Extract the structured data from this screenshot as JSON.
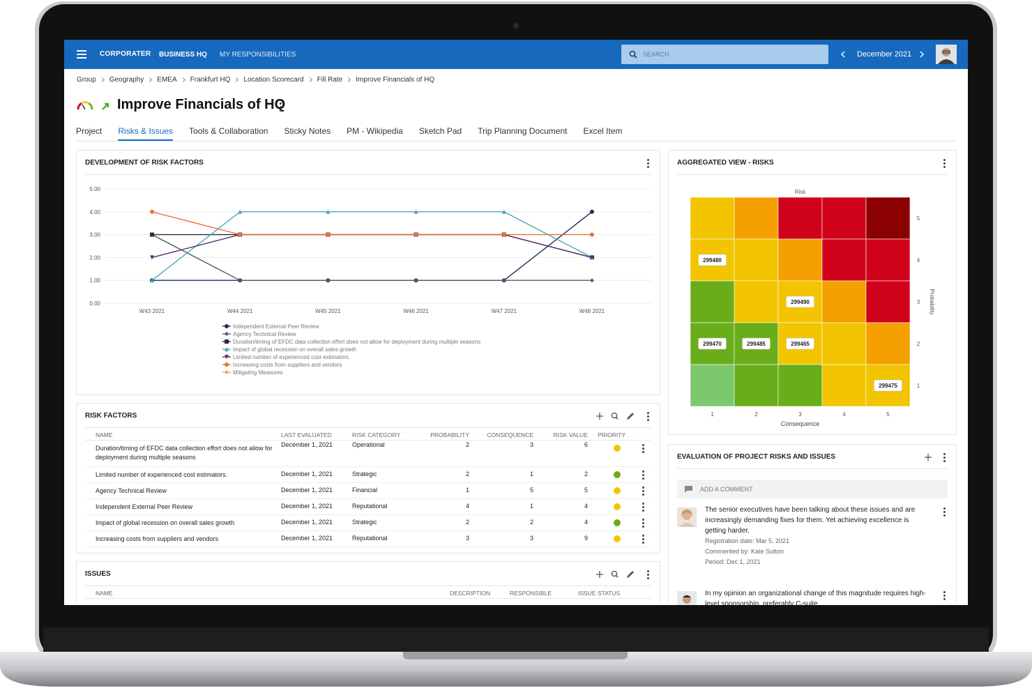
{
  "header": {
    "brand": "CORPORATER",
    "nav": [
      "BUSINESS HQ",
      "MY RESPONSIBILITIES"
    ],
    "search_placeholder": "SEARCH",
    "period": "December 2021"
  },
  "breadcrumbs": [
    "Group",
    "Geography",
    "EMEA",
    "Frankfurt HQ",
    "Location Scorecard",
    "Fill Rate",
    "Improve Financials of HQ"
  ],
  "page_title": "Improve Financials of HQ",
  "tabs": [
    "Project",
    "Risks & Issues",
    "Tools & Collaboration",
    "Sticky Notes",
    "PM - Wikipedia",
    "Sketch Pad",
    "Trip Planning Document",
    "Excel Item"
  ],
  "active_tab": 1,
  "risk_chart": {
    "type": "line",
    "title": "DEVELOPMENT OF RISK FACTORS",
    "x": [
      "W43 2021",
      "W44 2021",
      "W45 2021",
      "W46 2021",
      "W47 2021",
      "W48 2021"
    ],
    "ylim": [
      0,
      5
    ],
    "yticks": [
      {
        "value": 0,
        "label": "0.00"
      },
      {
        "value": 1,
        "label": "1.00"
      },
      {
        "value": 2,
        "label": "2.00"
      },
      {
        "value": 3,
        "label": "3.00"
      },
      {
        "value": 4,
        "label": "4.00"
      },
      {
        "value": 5,
        "label": "5.00"
      }
    ],
    "grid": true,
    "series": [
      {
        "name": "Independent External Peer Review",
        "color": "#1f2d5a",
        "marker": "circle",
        "values": [
          1,
          1,
          1,
          1,
          1,
          4
        ]
      },
      {
        "name": "Agency Technical Review",
        "color": "#555a60",
        "marker": "diamond",
        "values": [
          3,
          1,
          1,
          1,
          1,
          1
        ]
      },
      {
        "name": "Duration/timing of EFDC data collection effort does not allow for deployment during multiple seasons",
        "color": "#2b2b3b",
        "marker": "square",
        "values": [
          3,
          3,
          3,
          3,
          3,
          2
        ]
      },
      {
        "name": "Impact of global recession on overall sales growth",
        "color": "#4aa8b8",
        "marker": "triangle",
        "values": [
          1,
          4,
          4,
          4,
          4,
          2
        ]
      },
      {
        "name": "Limited number of experienced cost estimators.",
        "color": "#5b2c6f",
        "marker": "triangle-down",
        "values": [
          2,
          3,
          3,
          3,
          3,
          2
        ]
      },
      {
        "name": "Increasing costs from suppliers and vendors",
        "color": "#e8733a",
        "marker": "circle",
        "values": [
          4,
          3,
          3,
          3,
          3,
          3
        ]
      },
      {
        "name": "Mitigating Measures",
        "color": "#f5a54a",
        "marker": "diamond",
        "values": [
          null,
          null,
          null,
          null,
          null,
          null
        ]
      }
    ]
  },
  "heatmap": {
    "title": "AGGREGATED VIEW - RISKS",
    "top_label": "Risk",
    "x_title": "Consequence",
    "y_title": "Probability",
    "x_labels": [
      1,
      2,
      3,
      4,
      5
    ],
    "y_labels": [
      5,
      4,
      3,
      2,
      1
    ],
    "colors": [
      [
        "#f2c500",
        "#f5a000",
        "#d0021b",
        "#d0021b",
        "#8b0000"
      ],
      [
        "#f2c500",
        "#f2c500",
        "#f5a000",
        "#d0021b",
        "#d0021b"
      ],
      [
        "#6aad1a",
        "#f2c500",
        "#f2c500",
        "#f5a000",
        "#d0021b"
      ],
      [
        "#6aad1a",
        "#6aad1a",
        "#f2c500",
        "#f2c500",
        "#f5a000"
      ],
      [
        "#7cc86e",
        "#6aad1a",
        "#6aad1a",
        "#f2c500",
        "#f2c500"
      ]
    ],
    "items": [
      {
        "id": "299480",
        "probability": 4,
        "consequence": 1
      },
      {
        "id": "299490",
        "probability": 3,
        "consequence": 3
      },
      {
        "id": "299470",
        "probability": 2,
        "consequence": 1
      },
      {
        "id": "299485",
        "probability": 2,
        "consequence": 2
      },
      {
        "id": "299465",
        "probability": 2,
        "consequence": 3
      },
      {
        "id": "299475",
        "probability": 1,
        "consequence": 5
      }
    ]
  },
  "risk_factors": {
    "title": "RISK FACTORS",
    "columns": [
      "NAME",
      "LAST EVALUATED",
      "RISK CATEGORY",
      "PROBABILITY",
      "CONSEQUENCE",
      "RISK VALUE",
      "PRIORITY"
    ],
    "rows": [
      [
        "Duration/timing of EFDC data collection effort does not allow for deployment during multiple seasons",
        "December 1, 2021",
        "Operational",
        2,
        3,
        6
      ],
      [
        "Limited number of experienced cost estimators.",
        "December 1, 2021",
        "Strategic",
        2,
        1,
        2
      ],
      [
        "Agency Technical Review",
        "December 1, 2021",
        "Financial",
        1,
        5,
        5
      ],
      [
        "Independent External Peer Review",
        "December 1, 2021",
        "Reputational",
        4,
        1,
        4
      ],
      [
        "Impact of global recession on overall sales growth",
        "December 1, 2021",
        "Strategic",
        2,
        2,
        4
      ],
      [
        "Increasing costs from suppliers and vendors",
        "December 1, 2021",
        "Reputational",
        3,
        3,
        9
      ]
    ],
    "priority_colors": [
      "#f2c500",
      "#6aad1a",
      "#f2c500",
      "#f2c500",
      "#6aad1a",
      "#f2c500"
    ]
  },
  "issues": {
    "title": "ISSUES",
    "columns": [
      "NAME",
      "DESCRIPTION",
      "RESPONSIBLE",
      "ISSUE STATUS"
    ]
  },
  "evaluation": {
    "title": "EVALUATION OF PROJECT RISKS AND ISSUES",
    "add_comment": "ADD A COMMENT",
    "comments": [
      {
        "text": "The senior executives have been talking about these issues and are increasingly demanding fixes for them. Yet achieving excellence is getting harder.",
        "meta": [
          "Registration date: Mar 5, 2021",
          "Commented by: Kate Sutton",
          "Period: Dec 1, 2021"
        ]
      },
      {
        "text": "In my opinion an organizational change of this magnitude requires high-level sponsorship, preferably C-suite",
        "meta": []
      }
    ]
  }
}
